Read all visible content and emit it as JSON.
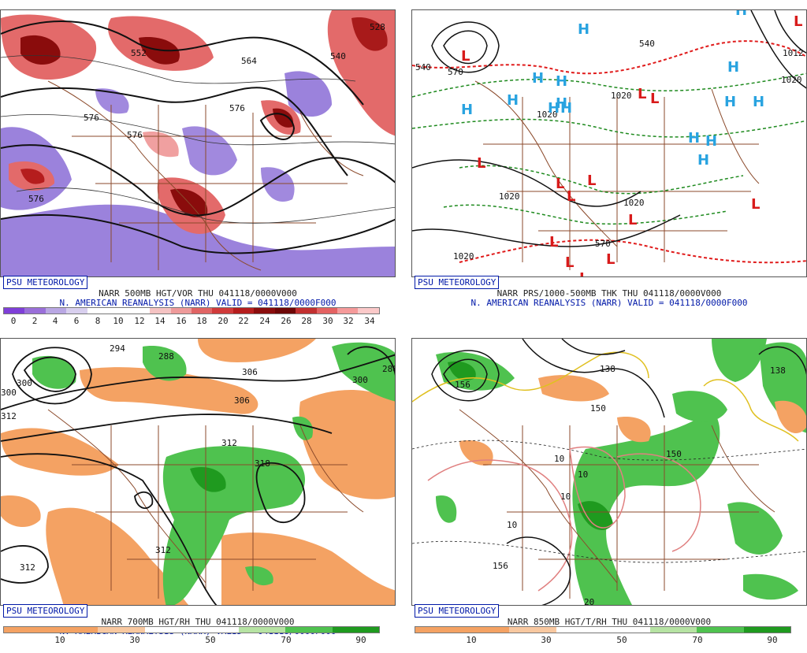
{
  "panels": [
    {
      "id": "vort500",
      "badge": "PSU METEOROLOGY",
      "line1": "NARR 500MB HGT/VOR THU 041118/0000V000",
      "line2": "N. AMERICAN REANALYSIS (NARR) VALID = 041118/0000F000",
      "contour_labels": [
        "576",
        "576",
        "576",
        "576",
        "564",
        "552",
        "540",
        "528"
      ],
      "colorbar": {
        "colors": [
          "#7f3fd8",
          "#9a6fd9",
          "#b9a7e3",
          "#d8cfee",
          "#ffffff",
          "#ffffff",
          "#ffffff",
          "#f5c3c3",
          "#ee9a9a",
          "#e06464",
          "#d03a3a",
          "#b51d1d",
          "#8a0c0c",
          "#6e0606",
          "#c23030",
          "#e46262",
          "#f59a9a",
          "#fbc9c9"
        ],
        "ticks": [
          "0",
          "2",
          "4",
          "6",
          "8",
          "10",
          "12",
          "14",
          "16",
          "18",
          "20",
          "22",
          "24",
          "26",
          "28",
          "30",
          "32",
          "34"
        ]
      }
    },
    {
      "id": "thk",
      "badge": "PSU METEOROLOGY",
      "line1": "NARR PRS/1000-500MB THK THU 041118/0000V000",
      "line2": "N. AMERICAN REANALYSIS (NARR) VALID = 041118/0000F000",
      "contour_labels": [
        "1020",
        "1020",
        "1020",
        "1020",
        "1020",
        "1012",
        "1020",
        "540",
        "540",
        "570",
        "570"
      ],
      "highs": 15,
      "lows": 14,
      "high_symbol": "H",
      "low_symbol": "L"
    },
    {
      "id": "rh700",
      "badge": "PSU METEOROLOGY",
      "line1": "NARR 700MB HGT/RH THU 041118/0000V000",
      "line2": "N. AMERICAN REANALYSIS (NARR) VALID = 041118/0000F000",
      "contour_labels": [
        "294",
        "288",
        "300",
        "306",
        "306",
        "312",
        "318",
        "312",
        "312",
        "300",
        "288",
        "300",
        "312"
      ],
      "colorbar": {
        "colors": [
          "#f4a263",
          "#f4a263",
          "#f8c8a0",
          "#ffffff",
          "#ffffff",
          "#b6e3a3",
          "#4fc24f",
          "#1f9a1f"
        ],
        "ticks": [
          "10",
          "30",
          "50",
          "70",
          "90"
        ]
      }
    },
    {
      "id": "t850",
      "badge": "PSU METEOROLOGY",
      "line1": "NARR 850MB HGT/T/RH THU 041118/0000V000",
      "contour_labels": [
        "138",
        "150",
        "150",
        "156",
        "156",
        "138",
        "10",
        "10",
        "10",
        "10",
        "20"
      ],
      "colorbar": {
        "colors": [
          "#f4a263",
          "#f4a263",
          "#f8c8a0",
          "#ffffff",
          "#ffffff",
          "#b6e3a3",
          "#4fc24f",
          "#1f9a1f"
        ],
        "ticks": [
          "10",
          "30",
          "50",
          "70",
          "90"
        ]
      }
    }
  ]
}
